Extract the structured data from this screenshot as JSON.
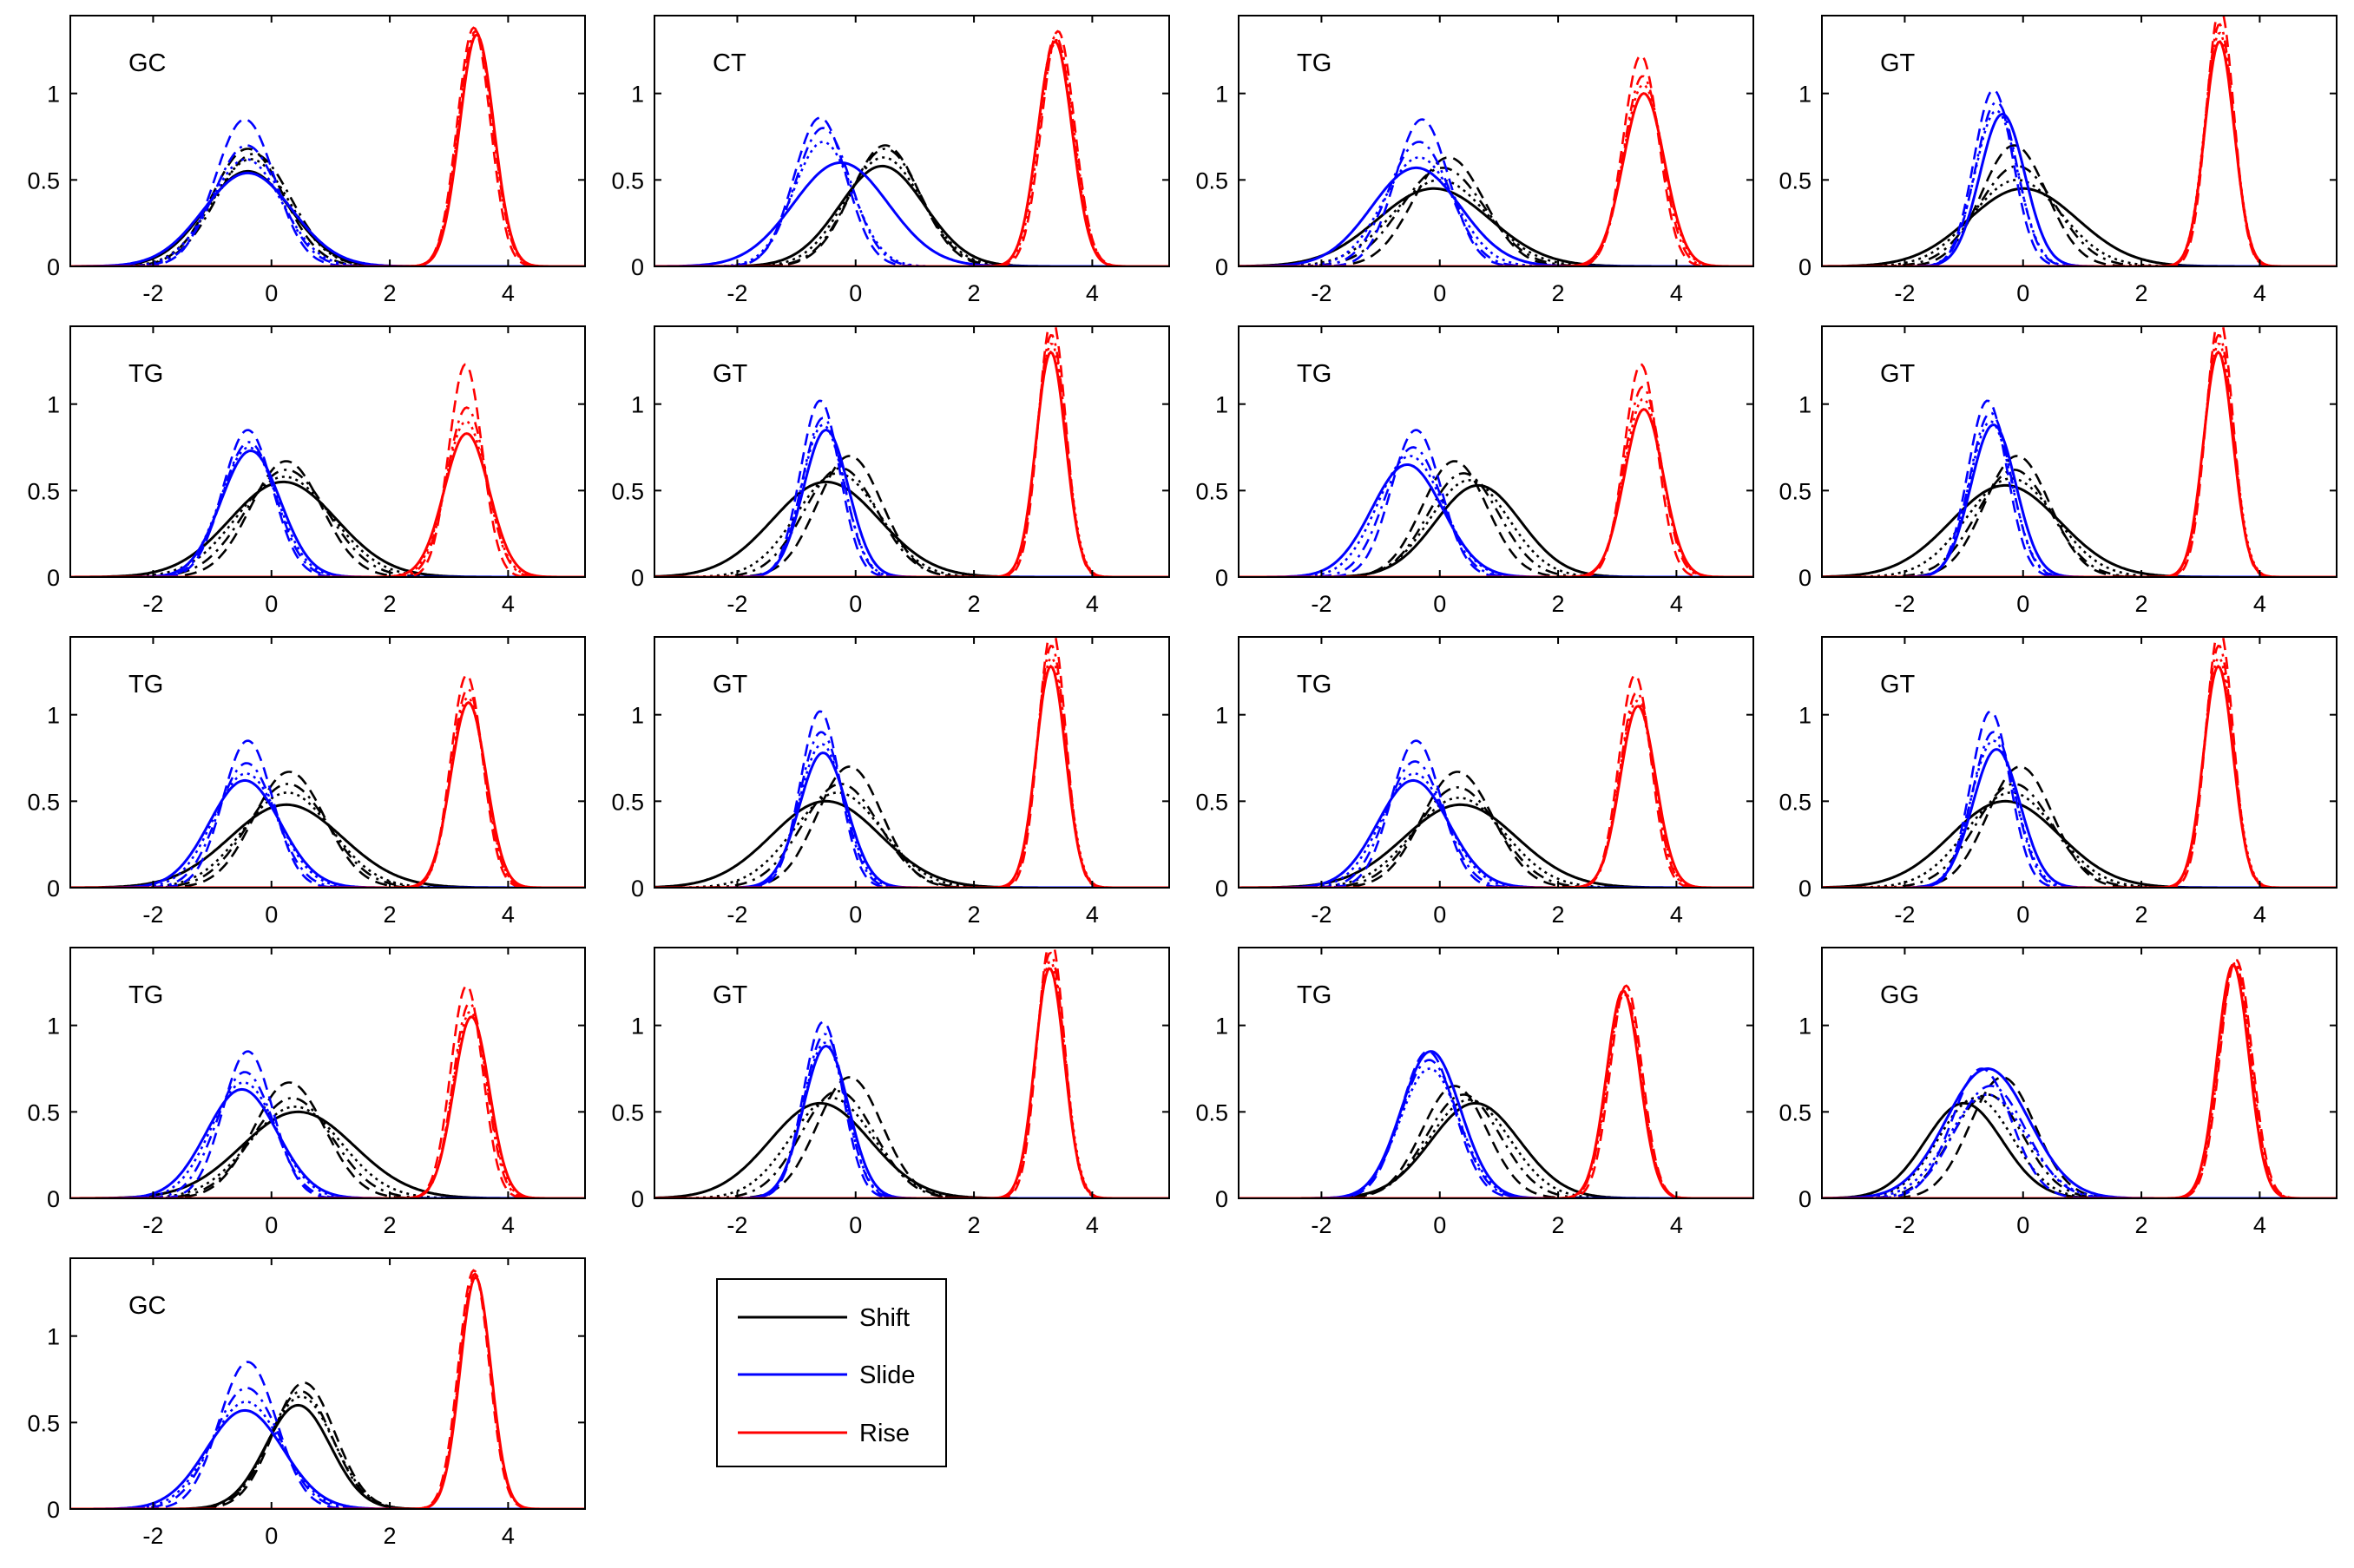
{
  "chart_data": {
    "type": "line",
    "panel_grid": {
      "rows": 5,
      "cols": 4
    },
    "x_range": [
      -3.4,
      5.3
    ],
    "y_range": [
      0,
      1.45
    ],
    "x_ticks": [
      -2,
      0,
      2,
      4
    ],
    "y_ticks": [
      0,
      0.5,
      1
    ],
    "x_tick_labels": [
      "-2",
      "0",
      "2",
      "4"
    ],
    "y_tick_labels": [
      "0",
      "0.5",
      "1"
    ],
    "line_styles": [
      "solid",
      "dashed",
      "dashdot",
      "dotted"
    ],
    "legend": {
      "placement": "below-panel-2",
      "entries": [
        {
          "name": "Shift",
          "color": "#000000"
        },
        {
          "name": "Slide",
          "color": "#0000ff"
        },
        {
          "name": "Rise",
          "color": "#ff0000"
        }
      ]
    },
    "panels": [
      {
        "label": "GC",
        "shift": {
          "mu": [
            -0.4,
            -0.4,
            -0.3,
            -0.35
          ],
          "peak": [
            0.55,
            0.68,
            0.65,
            0.62
          ],
          "sd": [
            0.72,
            0.6,
            0.63,
            0.65
          ]
        },
        "slide": {
          "mu": [
            -0.4,
            -0.45,
            -0.42,
            -0.43
          ],
          "peak": [
            0.54,
            0.85,
            0.7,
            0.62
          ],
          "sd": [
            0.75,
            0.5,
            0.55,
            0.6
          ]
        },
        "rise": {
          "mu": [
            3.47,
            3.42,
            3.45,
            3.45
          ],
          "peak": [
            1.34,
            1.38,
            1.36,
            1.35
          ],
          "sd": [
            0.29,
            0.28,
            0.29,
            0.29
          ]
        }
      },
      {
        "label": "CT",
        "shift": {
          "mu": [
            0.45,
            0.5,
            0.5,
            0.47
          ],
          "peak": [
            0.58,
            0.7,
            0.68,
            0.63
          ],
          "sd": [
            0.72,
            0.58,
            0.6,
            0.65
          ]
        },
        "slide": {
          "mu": [
            -0.25,
            -0.6,
            -0.55,
            -0.55
          ],
          "peak": [
            0.6,
            0.86,
            0.8,
            0.72
          ],
          "sd": [
            0.8,
            0.44,
            0.47,
            0.5
          ]
        },
        "rise": {
          "mu": [
            3.37,
            3.42,
            3.38,
            3.4
          ],
          "peak": [
            1.3,
            1.36,
            1.33,
            1.31
          ],
          "sd": [
            0.29,
            0.28,
            0.29,
            0.29
          ]
        }
      },
      {
        "label": "TG",
        "shift": {
          "mu": [
            -0.1,
            0.15,
            0.05,
            0.0
          ],
          "peak": [
            0.45,
            0.63,
            0.57,
            0.5
          ],
          "sd": [
            0.95,
            0.6,
            0.7,
            0.8
          ]
        },
        "slide": {
          "mu": [
            -0.4,
            -0.3,
            -0.35,
            -0.35
          ],
          "peak": [
            0.57,
            0.85,
            0.72,
            0.63
          ],
          "sd": [
            0.75,
            0.45,
            0.52,
            0.6
          ]
        },
        "rise": {
          "mu": [
            3.45,
            3.4,
            3.43,
            3.44
          ],
          "peak": [
            1.0,
            1.22,
            1.1,
            1.05
          ],
          "sd": [
            0.35,
            0.3,
            0.32,
            0.34
          ]
        }
      },
      {
        "label": "GT",
        "shift": {
          "mu": [
            0.0,
            -0.15,
            -0.1,
            -0.1
          ],
          "peak": [
            0.45,
            0.7,
            0.58,
            0.5
          ],
          "sd": [
            0.92,
            0.55,
            0.65,
            0.75
          ]
        },
        "slide": {
          "mu": [
            -0.35,
            -0.5,
            -0.45,
            -0.45
          ],
          "peak": [
            0.88,
            1.02,
            0.95,
            0.9
          ],
          "sd": [
            0.38,
            0.33,
            0.35,
            0.36
          ]
        },
        "rise": {
          "mu": [
            3.32,
            3.33,
            3.32,
            3.32
          ],
          "peak": [
            1.3,
            1.5,
            1.4,
            1.35
          ],
          "sd": [
            0.25,
            0.23,
            0.24,
            0.25
          ]
        }
      },
      {
        "label": "TG",
        "shift": {
          "mu": [
            0.2,
            0.25,
            0.25,
            0.22
          ],
          "peak": [
            0.55,
            0.67,
            0.62,
            0.58
          ],
          "sd": [
            0.9,
            0.6,
            0.7,
            0.8
          ]
        },
        "slide": {
          "mu": [
            -0.35,
            -0.4,
            -0.38,
            -0.38
          ],
          "peak": [
            0.73,
            0.85,
            0.78,
            0.75
          ],
          "sd": [
            0.5,
            0.42,
            0.45,
            0.48
          ]
        },
        "rise": {
          "mu": [
            3.3,
            3.28,
            3.3,
            3.29
          ],
          "peak": [
            0.83,
            1.23,
            0.98,
            0.9
          ],
          "sd": [
            0.38,
            0.28,
            0.33,
            0.35
          ]
        }
      },
      {
        "label": "GT",
        "shift": {
          "mu": [
            -0.5,
            -0.1,
            -0.25,
            -0.3
          ],
          "peak": [
            0.55,
            0.7,
            0.63,
            0.6
          ],
          "sd": [
            0.9,
            0.55,
            0.62,
            0.7
          ]
        },
        "slide": {
          "mu": [
            -0.5,
            -0.6,
            -0.55,
            -0.55
          ],
          "peak": [
            0.85,
            1.02,
            0.92,
            0.88
          ],
          "sd": [
            0.38,
            0.33,
            0.35,
            0.36
          ]
        },
        "rise": {
          "mu": [
            3.3,
            3.32,
            3.31,
            3.31
          ],
          "peak": [
            1.3,
            1.5,
            1.4,
            1.35
          ],
          "sd": [
            0.25,
            0.23,
            0.24,
            0.25
          ]
        }
      },
      {
        "label": "TG",
        "shift": {
          "mu": [
            0.65,
            0.25,
            0.4,
            0.5
          ],
          "peak": [
            0.53,
            0.67,
            0.6,
            0.56
          ],
          "sd": [
            0.72,
            0.55,
            0.6,
            0.66
          ]
        },
        "slide": {
          "mu": [
            -0.55,
            -0.4,
            -0.45,
            -0.5
          ],
          "peak": [
            0.65,
            0.85,
            0.75,
            0.7
          ],
          "sd": [
            0.6,
            0.42,
            0.48,
            0.55
          ]
        },
        "rise": {
          "mu": [
            3.45,
            3.4,
            3.43,
            3.44
          ],
          "peak": [
            0.97,
            1.23,
            1.1,
            1.03
          ],
          "sd": [
            0.33,
            0.28,
            0.31,
            0.32
          ]
        }
      },
      {
        "label": "GT",
        "shift": {
          "mu": [
            -0.3,
            -0.1,
            -0.15,
            -0.2
          ],
          "peak": [
            0.53,
            0.7,
            0.62,
            0.57
          ],
          "sd": [
            0.92,
            0.55,
            0.62,
            0.75
          ]
        },
        "slide": {
          "mu": [
            -0.5,
            -0.6,
            -0.55,
            -0.55
          ],
          "peak": [
            0.88,
            1.02,
            0.95,
            0.9
          ],
          "sd": [
            0.38,
            0.33,
            0.35,
            0.36
          ]
        },
        "rise": {
          "mu": [
            3.3,
            3.32,
            3.31,
            3.31
          ],
          "peak": [
            1.3,
            1.5,
            1.4,
            1.35
          ],
          "sd": [
            0.25,
            0.23,
            0.24,
            0.25
          ]
        }
      },
      {
        "label": "TG",
        "shift": {
          "mu": [
            0.25,
            0.3,
            0.28,
            0.27
          ],
          "peak": [
            0.48,
            0.67,
            0.6,
            0.55
          ],
          "sd": [
            0.95,
            0.6,
            0.68,
            0.75
          ]
        },
        "slide": {
          "mu": [
            -0.45,
            -0.4,
            -0.42,
            -0.43
          ],
          "peak": [
            0.62,
            0.85,
            0.72,
            0.66
          ],
          "sd": [
            0.6,
            0.42,
            0.48,
            0.55
          ]
        },
        "rise": {
          "mu": [
            3.33,
            3.3,
            3.32,
            3.32
          ],
          "peak": [
            1.07,
            1.23,
            1.15,
            1.1
          ],
          "sd": [
            0.3,
            0.27,
            0.28,
            0.29
          ]
        }
      },
      {
        "label": "GT",
        "shift": {
          "mu": [
            -0.5,
            -0.1,
            -0.25,
            -0.3
          ],
          "peak": [
            0.5,
            0.7,
            0.6,
            0.55
          ],
          "sd": [
            0.92,
            0.55,
            0.65,
            0.75
          ]
        },
        "slide": {
          "mu": [
            -0.55,
            -0.6,
            -0.58,
            -0.57
          ],
          "peak": [
            0.78,
            1.02,
            0.9,
            0.83
          ],
          "sd": [
            0.4,
            0.33,
            0.36,
            0.38
          ]
        },
        "rise": {
          "mu": [
            3.3,
            3.32,
            3.31,
            3.31
          ],
          "peak": [
            1.28,
            1.5,
            1.4,
            1.33
          ],
          "sd": [
            0.25,
            0.23,
            0.24,
            0.25
          ]
        }
      },
      {
        "label": "TG",
        "shift": {
          "mu": [
            0.35,
            0.3,
            0.3,
            0.32
          ],
          "peak": [
            0.48,
            0.67,
            0.58,
            0.52
          ],
          "sd": [
            0.95,
            0.6,
            0.68,
            0.78
          ]
        },
        "slide": {
          "mu": [
            -0.45,
            -0.4,
            -0.42,
            -0.43
          ],
          "peak": [
            0.62,
            0.85,
            0.73,
            0.66
          ],
          "sd": [
            0.6,
            0.42,
            0.48,
            0.55
          ]
        },
        "rise": {
          "mu": [
            3.35,
            3.3,
            3.33,
            3.33
          ],
          "peak": [
            1.05,
            1.23,
            1.13,
            1.08
          ],
          "sd": [
            0.3,
            0.27,
            0.28,
            0.29
          ]
        }
      },
      {
        "label": "GT",
        "shift": {
          "mu": [
            -0.3,
            -0.05,
            -0.15,
            -0.2
          ],
          "peak": [
            0.5,
            0.7,
            0.6,
            0.55
          ],
          "sd": [
            0.92,
            0.55,
            0.65,
            0.75
          ]
        },
        "slide": {
          "mu": [
            -0.45,
            -0.55,
            -0.5,
            -0.5
          ],
          "peak": [
            0.8,
            1.02,
            0.9,
            0.85
          ],
          "sd": [
            0.4,
            0.33,
            0.36,
            0.38
          ]
        },
        "rise": {
          "mu": [
            3.3,
            3.32,
            3.31,
            3.31
          ],
          "peak": [
            1.28,
            1.5,
            1.4,
            1.33
          ],
          "sd": [
            0.25,
            0.23,
            0.24,
            0.25
          ]
        }
      },
      {
        "label": "TG",
        "shift": {
          "mu": [
            0.45,
            0.3,
            0.35,
            0.4
          ],
          "peak": [
            0.5,
            0.67,
            0.58,
            0.53
          ],
          "sd": [
            0.95,
            0.6,
            0.68,
            0.78
          ]
        },
        "slide": {
          "mu": [
            -0.5,
            -0.4,
            -0.45,
            -0.47
          ],
          "peak": [
            0.63,
            0.85,
            0.73,
            0.67
          ],
          "sd": [
            0.6,
            0.42,
            0.48,
            0.55
          ]
        },
        "rise": {
          "mu": [
            3.38,
            3.3,
            3.35,
            3.36
          ],
          "peak": [
            1.05,
            1.23,
            1.13,
            1.08
          ],
          "sd": [
            0.3,
            0.27,
            0.28,
            0.29
          ]
        }
      },
      {
        "label": "GT",
        "shift": {
          "mu": [
            -0.6,
            -0.1,
            -0.3,
            -0.4
          ],
          "peak": [
            0.55,
            0.7,
            0.62,
            0.58
          ],
          "sd": [
            0.85,
            0.55,
            0.62,
            0.7
          ]
        },
        "slide": {
          "mu": [
            -0.5,
            -0.55,
            -0.52,
            -0.52
          ],
          "peak": [
            0.88,
            1.02,
            0.95,
            0.9
          ],
          "sd": [
            0.38,
            0.33,
            0.35,
            0.36
          ]
        },
        "rise": {
          "mu": [
            3.28,
            3.3,
            3.29,
            3.29
          ],
          "peak": [
            1.33,
            1.5,
            1.42,
            1.37
          ],
          "sd": [
            0.25,
            0.23,
            0.24,
            0.25
          ]
        }
      },
      {
        "label": "TG",
        "shift": {
          "mu": [
            0.6,
            0.25,
            0.4,
            0.5
          ],
          "peak": [
            0.55,
            0.65,
            0.6,
            0.57
          ],
          "sd": [
            0.75,
            0.55,
            0.62,
            0.68
          ]
        },
        "slide": {
          "mu": [
            -0.15,
            -0.2,
            -0.18,
            -0.17
          ],
          "peak": [
            0.85,
            0.85,
            0.8,
            0.75
          ],
          "sd": [
            0.5,
            0.45,
            0.48,
            0.5
          ]
        },
        "rise": {
          "mu": [
            3.1,
            3.15,
            3.12,
            3.12
          ],
          "peak": [
            1.2,
            1.23,
            1.2,
            1.18
          ],
          "sd": [
            0.28,
            0.27,
            0.28,
            0.28
          ]
        }
      },
      {
        "label": "GG",
        "shift": {
          "mu": [
            -1.0,
            -0.35,
            -0.6,
            -0.8
          ],
          "peak": [
            0.55,
            0.7,
            0.6,
            0.58
          ],
          "sd": [
            0.65,
            0.55,
            0.6,
            0.62
          ]
        },
        "slide": {
          "mu": [
            -0.6,
            -0.7,
            -0.55,
            -0.6
          ],
          "peak": [
            0.75,
            0.75,
            0.65,
            0.6
          ],
          "sd": [
            0.7,
            0.5,
            0.6,
            0.65
          ]
        },
        "rise": {
          "mu": [
            3.55,
            3.6,
            3.58,
            3.58
          ],
          "peak": [
            1.35,
            1.38,
            1.36,
            1.36
          ],
          "sd": [
            0.27,
            0.27,
            0.27,
            0.27
          ]
        }
      },
      {
        "label": "GC",
        "shift": {
          "mu": [
            0.45,
            0.55,
            0.5,
            0.5
          ],
          "peak": [
            0.6,
            0.73,
            0.68,
            0.65
          ],
          "sd": [
            0.55,
            0.52,
            0.53,
            0.55
          ]
        },
        "slide": {
          "mu": [
            -0.45,
            -0.4,
            -0.42,
            -0.43
          ],
          "peak": [
            0.57,
            0.85,
            0.7,
            0.62
          ],
          "sd": [
            0.65,
            0.48,
            0.55,
            0.6
          ]
        },
        "rise": {
          "mu": [
            3.45,
            3.42,
            3.44,
            3.44
          ],
          "peak": [
            1.34,
            1.38,
            1.36,
            1.35
          ],
          "sd": [
            0.26,
            0.26,
            0.26,
            0.26
          ]
        }
      }
    ]
  }
}
